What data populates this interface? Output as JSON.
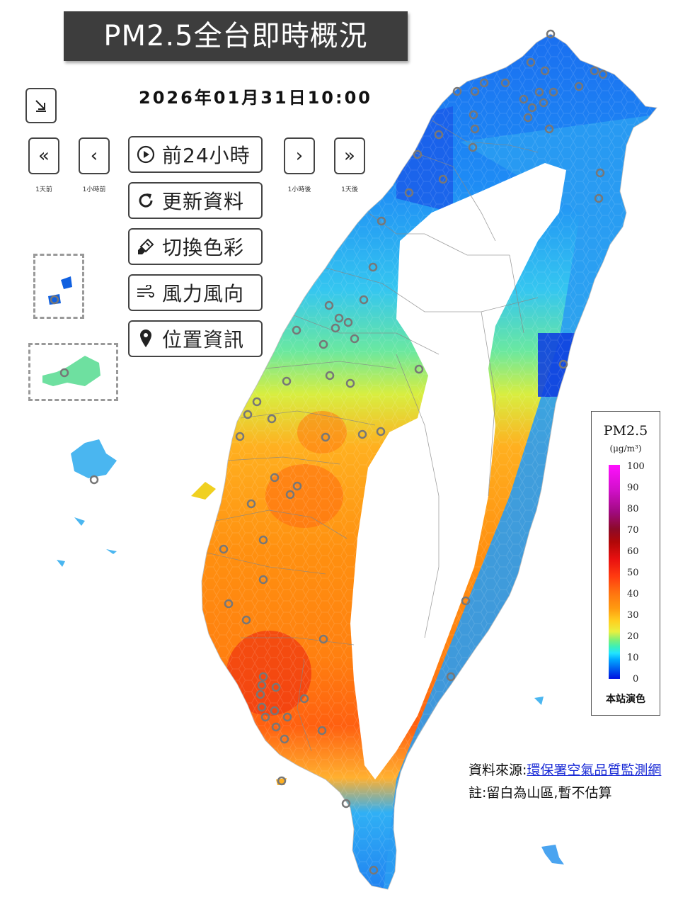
{
  "title": "PM2.5全台即時概況",
  "timestamp": "2026年01月31日10:00",
  "nav": {
    "collapse_icon": "arrow-down-right-icon",
    "prev_day": {
      "glyph": "«",
      "caption": "1天前"
    },
    "prev_hour": {
      "glyph": "‹",
      "caption": "1小時前"
    },
    "next_hour": {
      "glyph": "›",
      "caption": "1小時後"
    },
    "next_day": {
      "glyph": "»",
      "caption": "1天後"
    }
  },
  "menu": [
    {
      "label": "前24小時",
      "icon": "play-circle-icon"
    },
    {
      "label": "更新資料",
      "icon": "refresh-icon"
    },
    {
      "label": "切換色彩",
      "icon": "paint-brush-icon"
    },
    {
      "label": "風力風向",
      "icon": "wind-icon"
    },
    {
      "label": "位置資訊",
      "icon": "location-pin-icon"
    }
  ],
  "legend": {
    "title": "PM2.5",
    "unit": "(μg/m³)",
    "ticks": [
      "100",
      "90",
      "80",
      "70",
      "60",
      "50",
      "40",
      "30",
      "20",
      "10",
      "0"
    ],
    "footer": "本站演色",
    "colors": {
      "low": "#0010e0",
      "mid": "#ffd020",
      "high": "#ff10ff"
    }
  },
  "source": {
    "prefix": "資料來源:",
    "link_text": "環保署空氣品質監測網"
  },
  "note": "註:留白為山區,暫不估算"
}
